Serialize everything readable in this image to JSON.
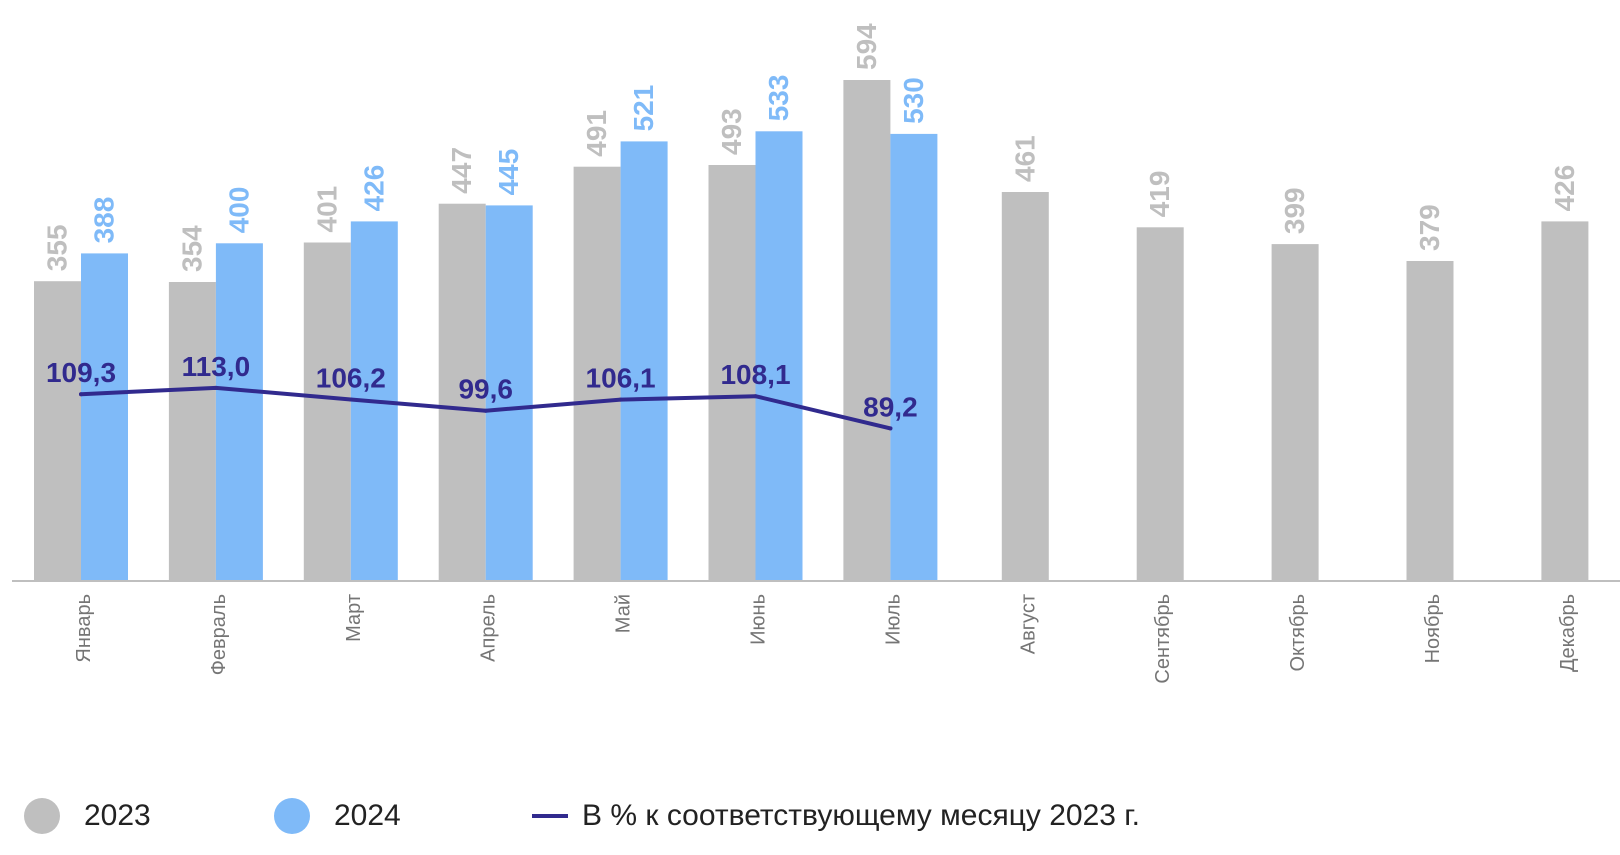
{
  "chart_data": {
    "type": "bar",
    "categories": [
      "Январь",
      "Февраль",
      "Март",
      "Апрель",
      "Май",
      "Июнь",
      "Июль",
      "Август",
      "Сентябрь",
      "Октябрь",
      "Ноябрь",
      "Декабрь"
    ],
    "series": [
      {
        "name": "2023",
        "type": "bar",
        "color": "#bfbfbf",
        "label_color": "#bfbfbf",
        "values": [
          355,
          354,
          401,
          447,
          491,
          493,
          594,
          461,
          419,
          399,
          379,
          426
        ],
        "labels": [
          "355",
          "354",
          "401",
          "447",
          "491",
          "493",
          "594",
          "461",
          "419",
          "399",
          "379",
          "426"
        ]
      },
      {
        "name": "2024",
        "type": "bar",
        "color": "#7fbaf8",
        "label_color": "#7fbaf8",
        "values": [
          388,
          400,
          426,
          445,
          521,
          533,
          530,
          null,
          null,
          null,
          null,
          null
        ],
        "labels": [
          "388",
          "400",
          "426",
          "445",
          "521",
          "533",
          "530",
          "",
          "",
          "",
          "",
          ""
        ]
      },
      {
        "name": "В % к соответствующему месяцу 2023 г.",
        "type": "line",
        "color": "#312a8e",
        "label_color": "#312a8e",
        "values": [
          109.3,
          113.0,
          106.2,
          99.6,
          106.1,
          108.1,
          89.2,
          null,
          null,
          null,
          null,
          null
        ],
        "labels": [
          "109,3",
          "113,0",
          "106,2",
          "99,6",
          "106,1",
          "108,1",
          "89,2",
          "",
          "",
          "",
          "",
          ""
        ]
      }
    ],
    "ylim_bars": [
      0,
      600
    ],
    "ylim_line": [
      0,
      180
    ],
    "grid": false,
    "legend_position": "bottom",
    "xlabel": "",
    "ylabel": ""
  },
  "colors": {
    "axis": "#bfbfbf",
    "category_text": "#757575",
    "legend_text": "#222222"
  }
}
